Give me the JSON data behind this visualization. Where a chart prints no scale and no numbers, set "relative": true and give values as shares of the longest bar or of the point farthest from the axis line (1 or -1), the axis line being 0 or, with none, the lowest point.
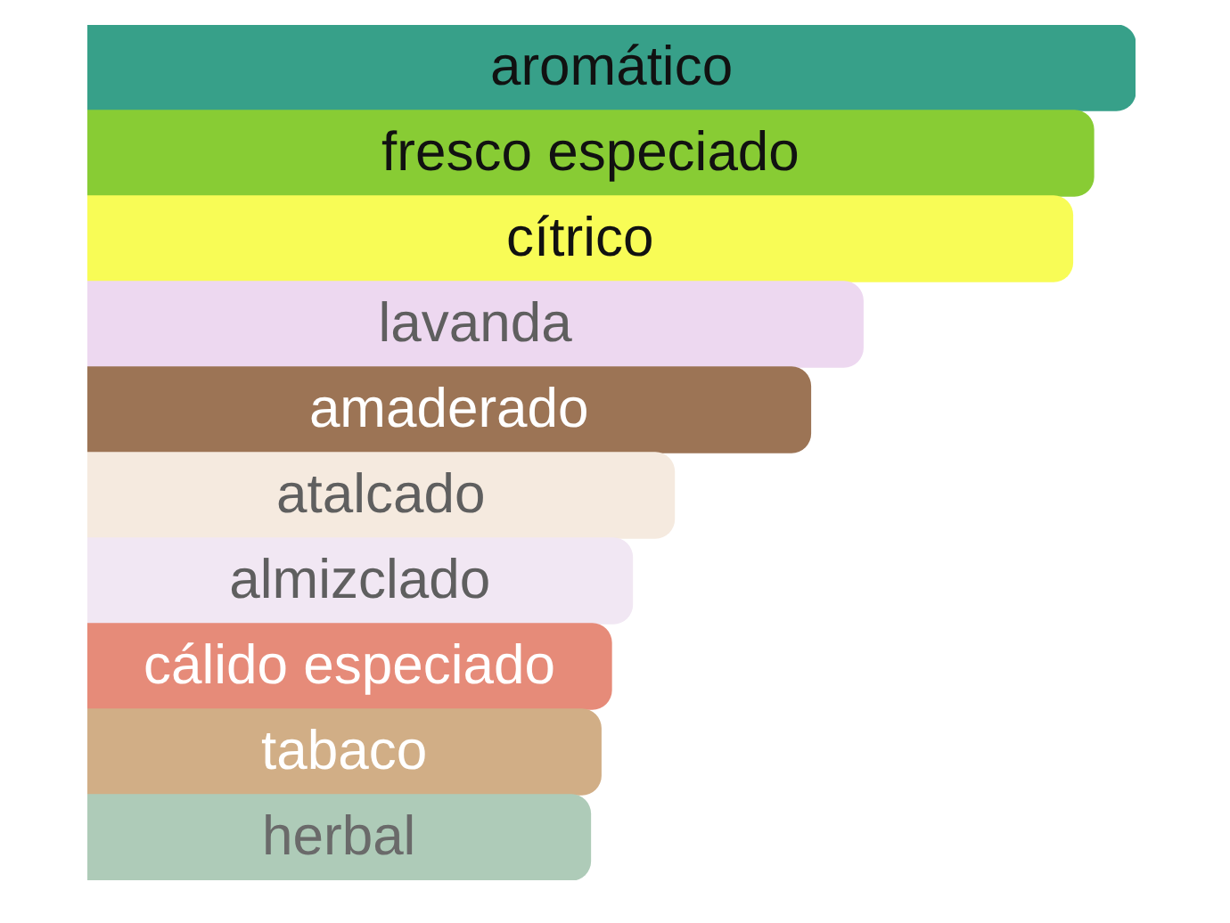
{
  "chart_data": {
    "type": "bar",
    "orientation": "horizontal",
    "relative": true,
    "categories": [
      "aromático",
      "fresco especiado",
      "cítrico",
      "lavanda",
      "amaderado",
      "atalcado",
      "almizclado",
      "cálido especiado",
      "tabaco",
      "herbal"
    ],
    "values": [
      1,
      0.96,
      0.94,
      0.74,
      0.69,
      0.56,
      0.52,
      0.5,
      0.49,
      0.48
    ],
    "colors": [
      "#37a089",
      "#88cc34",
      "#f8fc56",
      "#edd8f0",
      "#9c7455",
      "#f5eadf",
      "#f1e7f3",
      "#e68b79",
      "#d1ae86",
      "#aecbb8"
    ]
  }
}
